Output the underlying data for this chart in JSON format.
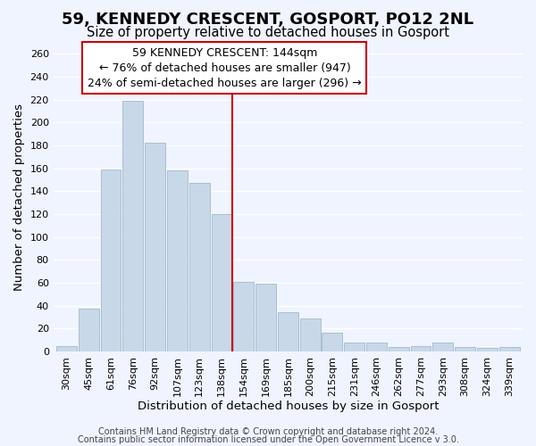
{
  "title": "59, KENNEDY CRESCENT, GOSPORT, PO12 2NL",
  "subtitle": "Size of property relative to detached houses in Gosport",
  "xlabel": "Distribution of detached houses by size in Gosport",
  "ylabel": "Number of detached properties",
  "bar_labels": [
    "30sqm",
    "45sqm",
    "61sqm",
    "76sqm",
    "92sqm",
    "107sqm",
    "123sqm",
    "138sqm",
    "154sqm",
    "169sqm",
    "185sqm",
    "200sqm",
    "215sqm",
    "231sqm",
    "246sqm",
    "262sqm",
    "277sqm",
    "293sqm",
    "308sqm",
    "324sqm",
    "339sqm"
  ],
  "bar_values": [
    5,
    37,
    159,
    219,
    182,
    158,
    147,
    120,
    61,
    59,
    34,
    29,
    16,
    8,
    8,
    4,
    5,
    8,
    4,
    3,
    4
  ],
  "bar_color": "#c8d8e8",
  "bar_edge_color": "#a8bfd0",
  "ylim": [
    0,
    270
  ],
  "yticks": [
    0,
    20,
    40,
    60,
    80,
    100,
    120,
    140,
    160,
    180,
    200,
    220,
    240,
    260
  ],
  "vline_color": "#cc0000",
  "annotation_title": "59 KENNEDY CRESCENT: 144sqm",
  "annotation_line1": "← 76% of detached houses are smaller (947)",
  "annotation_line2": "24% of semi-detached houses are larger (296) →",
  "footer1": "Contains HM Land Registry data © Crown copyright and database right 2024.",
  "footer2": "Contains public sector information licensed under the Open Government Licence v 3.0.",
  "title_fontsize": 13,
  "subtitle_fontsize": 10.5,
  "axis_label_fontsize": 9.5,
  "tick_fontsize": 8,
  "annotation_fontsize": 9,
  "footer_fontsize": 7,
  "background_color": "#f0f4ff",
  "grid_color": "#ffffff"
}
